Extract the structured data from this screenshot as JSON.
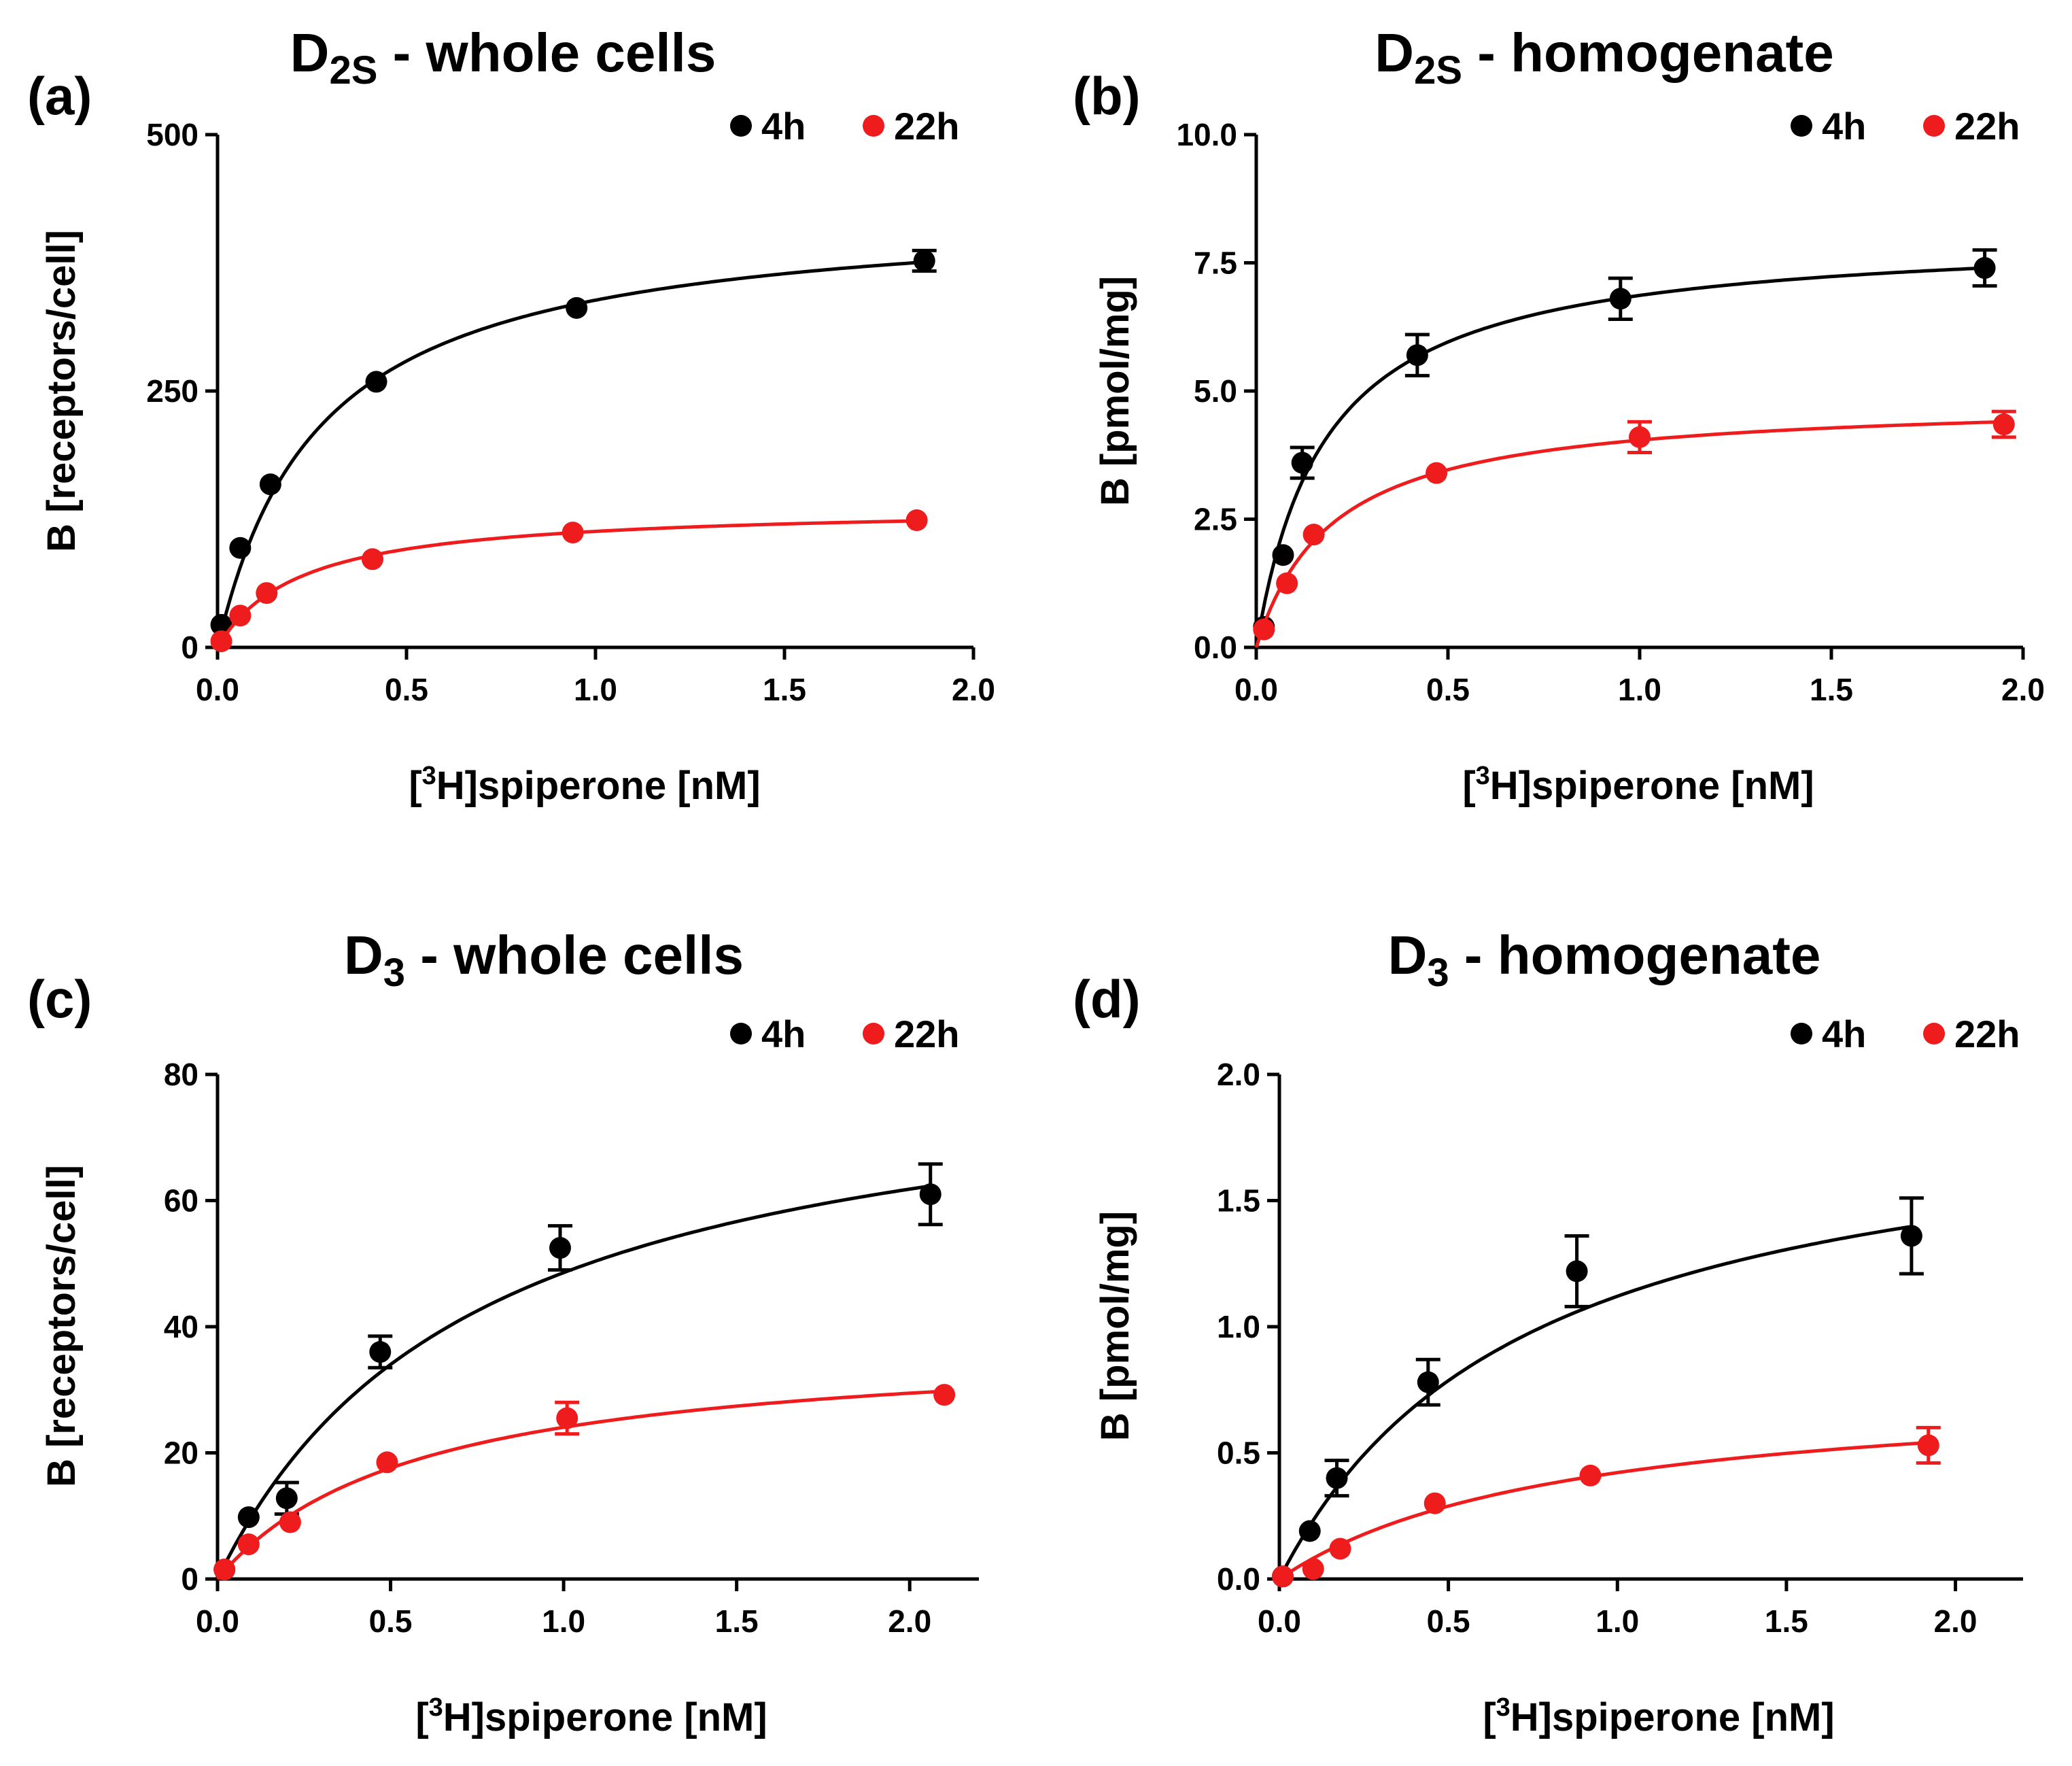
{
  "colors": {
    "4h": "#000000",
    "22h": "#ee1c1c"
  },
  "chart_data": [
    {
      "type": "scatter",
      "panel": "(a)",
      "title_main": "D",
      "title_sub": "2S",
      "title_rest": " - whole cells",
      "xlabel": {
        "pre": "[",
        "sup": "3",
        "post": "H]spiperone [nM]"
      },
      "ylabel": "B [receptors/cell]",
      "xlim": [
        0,
        2.0
      ],
      "ylim": [
        0,
        500
      ],
      "xticks": [
        "0.0",
        "0.5",
        "1.0",
        "1.5",
        "2.0"
      ],
      "xtick_values": [
        0,
        0.5,
        1.0,
        1.5,
        2.0
      ],
      "yticks": [
        "0",
        "250",
        "500"
      ],
      "ytick_values": [
        0,
        250,
        500
      ],
      "legend": {
        "position": "top-right",
        "entries": [
          "4h",
          "22h"
        ]
      },
      "series": [
        {
          "name": "4h",
          "color_key": "4h",
          "points": [
            {
              "x": 0.01,
              "y": 22,
              "err": 0
            },
            {
              "x": 0.06,
              "y": 97,
              "err": 0
            },
            {
              "x": 0.14,
              "y": 159,
              "err": 0
            },
            {
              "x": 0.42,
              "y": 259,
              "err": 0
            },
            {
              "x": 0.95,
              "y": 331,
              "err": 0
            },
            {
              "x": 1.87,
              "y": 377,
              "err": 10
            }
          ],
          "fit": {
            "bmax": 430,
            "kd": 0.27
          }
        },
        {
          "name": "22h",
          "color_key": "22h",
          "points": [
            {
              "x": 0.01,
              "y": 6,
              "err": 0
            },
            {
              "x": 0.06,
              "y": 31,
              "err": 0
            },
            {
              "x": 0.13,
              "y": 53,
              "err": 0
            },
            {
              "x": 0.41,
              "y": 86,
              "err": 0
            },
            {
              "x": 0.94,
              "y": 112,
              "err": 0
            },
            {
              "x": 1.85,
              "y": 124,
              "err": 0
            }
          ],
          "fit": {
            "bmax": 138,
            "kd": 0.22
          }
        }
      ]
    },
    {
      "type": "scatter",
      "panel": "(b)",
      "title_main": "D",
      "title_sub": "2S",
      "title_rest": " - homogenate",
      "xlabel": {
        "pre": "[",
        "sup": "3",
        "post": "H]spiperone [nM]"
      },
      "ylabel": "B [pmol/mg]",
      "xlim": [
        0,
        2.0
      ],
      "ylim": [
        0,
        10
      ],
      "xticks": [
        "0.0",
        "0.5",
        "1.0",
        "1.5",
        "2.0"
      ],
      "xtick_values": [
        0,
        0.5,
        1.0,
        1.5,
        2.0
      ],
      "yticks": [
        "0.0",
        "2.5",
        "5.0",
        "7.5",
        "10.0"
      ],
      "ytick_values": [
        0,
        2.5,
        5.0,
        7.5,
        10.0
      ],
      "legend": {
        "position": "top-right",
        "entries": [
          "4h",
          "22h"
        ]
      },
      "series": [
        {
          "name": "4h",
          "color_key": "4h",
          "points": [
            {
              "x": 0.02,
              "y": 0.4,
              "err": 0
            },
            {
              "x": 0.07,
              "y": 1.8,
              "err": 0
            },
            {
              "x": 0.12,
              "y": 3.6,
              "err": 0.3
            },
            {
              "x": 0.42,
              "y": 5.7,
              "err": 0.4
            },
            {
              "x": 0.95,
              "y": 6.8,
              "err": 0.4
            },
            {
              "x": 1.9,
              "y": 7.4,
              "err": 0.35
            }
          ],
          "fit": {
            "bmax": 8.1,
            "kd": 0.18
          }
        },
        {
          "name": "22h",
          "color_key": "22h",
          "points": [
            {
              "x": 0.02,
              "y": 0.35,
              "err": 0
            },
            {
              "x": 0.08,
              "y": 1.25,
              "err": 0
            },
            {
              "x": 0.15,
              "y": 2.2,
              "err": 0
            },
            {
              "x": 0.47,
              "y": 3.4,
              "err": 0
            },
            {
              "x": 1.0,
              "y": 4.1,
              "err": 0.3
            },
            {
              "x": 1.95,
              "y": 4.35,
              "err": 0.25
            }
          ],
          "fit": {
            "bmax": 4.85,
            "kd": 0.2
          }
        }
      ]
    },
    {
      "type": "scatter",
      "panel": "(c)",
      "title_main": "D",
      "title_sub": "3",
      "title_rest": " - whole cells",
      "xlabel": {
        "pre": "[",
        "sup": "3",
        "post": "H]spiperone [nM]"
      },
      "ylabel": "B [receptors/cell]",
      "xlim": [
        0,
        2.2
      ],
      "ylim": [
        0,
        80
      ],
      "xticks": [
        "0.0",
        "0.5",
        "1.0",
        "1.5",
        "2.0"
      ],
      "xtick_values": [
        0,
        0.5,
        1.0,
        1.5,
        2.0
      ],
      "yticks": [
        "0",
        "20",
        "40",
        "60",
        "80"
      ],
      "ytick_values": [
        0,
        20,
        40,
        60,
        80
      ],
      "legend": {
        "position": "top-right",
        "entries": [
          "4h",
          "22h"
        ]
      },
      "series": [
        {
          "name": "4h",
          "color_key": "4h",
          "points": [
            {
              "x": 0.02,
              "y": 1.5,
              "err": 0
            },
            {
              "x": 0.09,
              "y": 9.8,
              "err": 0
            },
            {
              "x": 0.2,
              "y": 12.8,
              "err": 2.5
            },
            {
              "x": 0.47,
              "y": 36.0,
              "err": 2.5
            },
            {
              "x": 0.99,
              "y": 52.5,
              "err": 3.5
            },
            {
              "x": 2.06,
              "y": 61.0,
              "err": 4.8
            }
          ],
          "fit": {
            "bmax": 85,
            "kd": 0.75
          }
        },
        {
          "name": "22h",
          "color_key": "22h",
          "points": [
            {
              "x": 0.02,
              "y": 1.5,
              "err": 0
            },
            {
              "x": 0.09,
              "y": 5.5,
              "err": 0
            },
            {
              "x": 0.21,
              "y": 9.0,
              "err": 0
            },
            {
              "x": 0.49,
              "y": 18.5,
              "err": 0
            },
            {
              "x": 1.01,
              "y": 25.5,
              "err": 2.5
            },
            {
              "x": 2.1,
              "y": 29.2,
              "err": 0
            }
          ],
          "fit": {
            "bmax": 38,
            "kd": 0.58
          }
        }
      ]
    },
    {
      "type": "scatter",
      "panel": "(d)",
      "title_main": "D",
      "title_sub": "3",
      "title_rest": " - homogenate",
      "xlabel": {
        "pre": "[",
        "sup": "3",
        "post": "H]spiperone [nM]"
      },
      "ylabel": "B [pmol/mg]",
      "xlim": [
        0,
        2.2
      ],
      "ylim": [
        0,
        2.0
      ],
      "xticks": [
        "0.0",
        "0.5",
        "1.0",
        "1.5",
        "2.0"
      ],
      "xtick_values": [
        0,
        0.5,
        1.0,
        1.5,
        2.0
      ],
      "yticks": [
        "0.0",
        "0.5",
        "1.0",
        "1.5",
        "2.0"
      ],
      "ytick_values": [
        0,
        0.5,
        1.0,
        1.5,
        2.0
      ],
      "legend": {
        "position": "top-right",
        "entries": [
          "4h",
          "22h"
        ]
      },
      "series": [
        {
          "name": "4h",
          "color_key": "4h",
          "points": [
            {
              "x": 0.01,
              "y": 0.01,
              "err": 0
            },
            {
              "x": 0.09,
              "y": 0.19,
              "err": 0
            },
            {
              "x": 0.17,
              "y": 0.4,
              "err": 0.07
            },
            {
              "x": 0.44,
              "y": 0.78,
              "err": 0.09
            },
            {
              "x": 0.88,
              "y": 1.22,
              "err": 0.14
            },
            {
              "x": 1.87,
              "y": 1.36,
              "err": 0.15
            }
          ],
          "fit": {
            "bmax": 1.95,
            "kd": 0.74
          }
        },
        {
          "name": "22h",
          "color_key": "22h",
          "points": [
            {
              "x": 0.01,
              "y": 0.01,
              "err": 0
            },
            {
              "x": 0.1,
              "y": 0.04,
              "err": 0
            },
            {
              "x": 0.18,
              "y": 0.12,
              "err": 0
            },
            {
              "x": 0.46,
              "y": 0.3,
              "err": 0
            },
            {
              "x": 0.92,
              "y": 0.41,
              "err": 0
            },
            {
              "x": 1.92,
              "y": 0.53,
              "err": 0.07
            }
          ],
          "fit": {
            "bmax": 0.78,
            "kd": 0.85
          }
        }
      ]
    }
  ]
}
